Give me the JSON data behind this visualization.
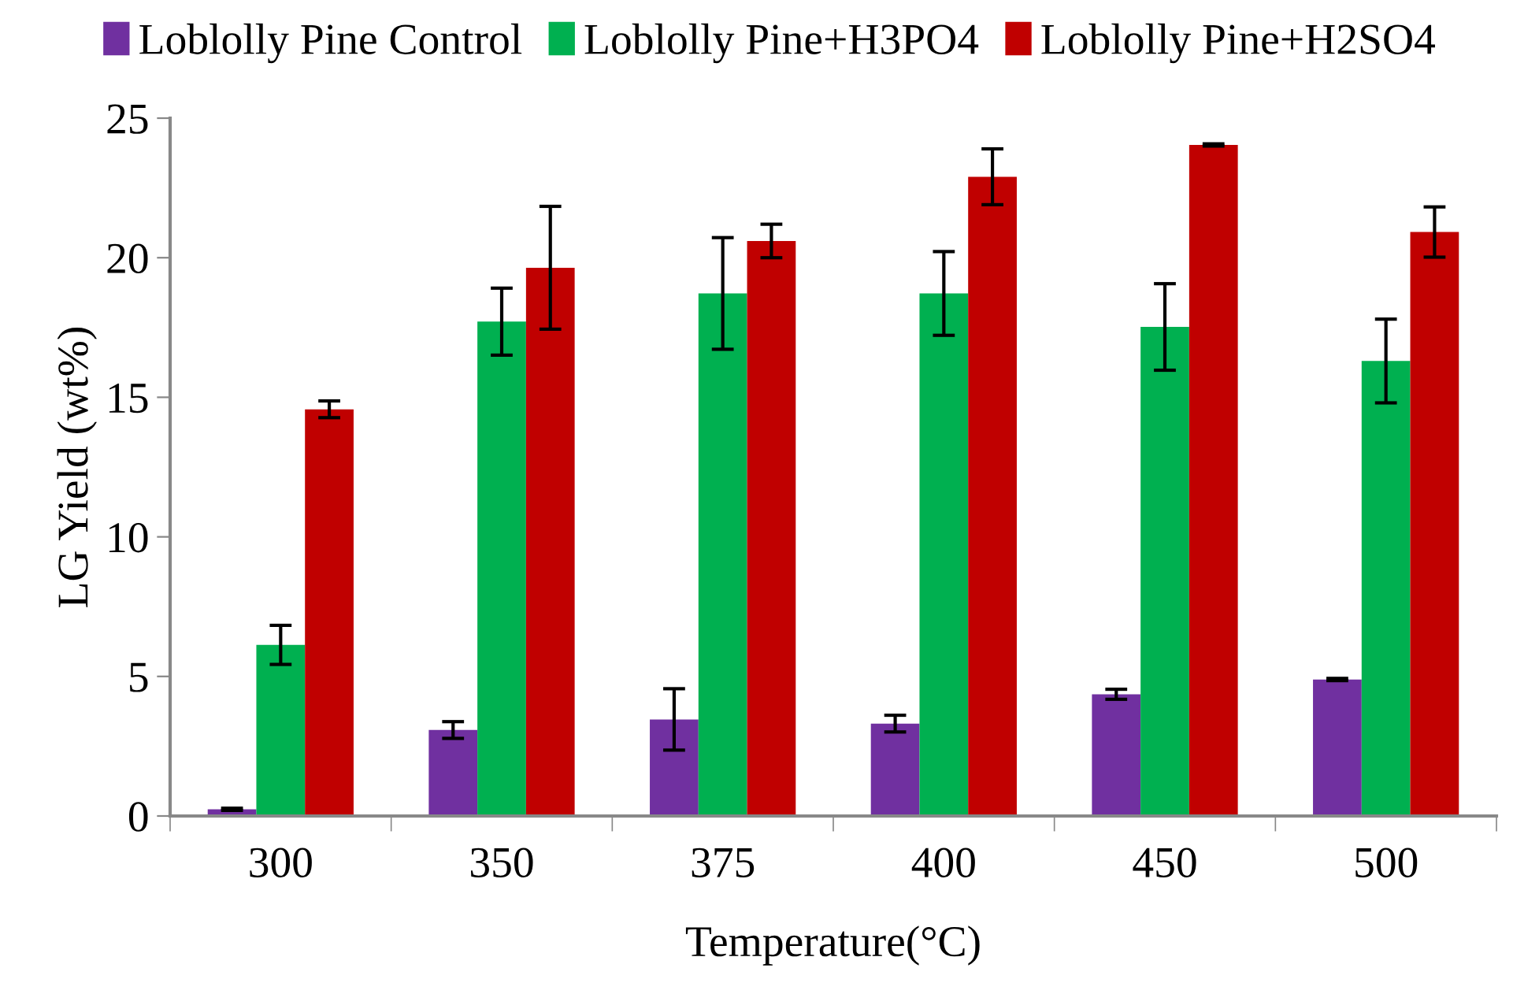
{
  "chart_data": {
    "type": "bar",
    "xlabel": "Temperature(°C)",
    "ylabel": "LG Yield (wt%)",
    "categories": [
      "300",
      "350",
      "375",
      "400",
      "450",
      "500"
    ],
    "series": [
      {
        "name": "Loblolly Pine Control",
        "color": "#7030a0",
        "values": [
          0.24,
          3.08,
          3.46,
          3.31,
          4.36,
          4.89
        ],
        "errors": [
          0.04,
          0.3,
          1.1,
          0.3,
          0.18,
          0.04
        ]
      },
      {
        "name": "Loblolly Pine+H3PO4",
        "color": "#00b050",
        "values": [
          6.13,
          17.71,
          18.72,
          18.72,
          17.52,
          16.3
        ],
        "errors": [
          0.7,
          1.2,
          2.0,
          1.5,
          1.55,
          1.5
        ]
      },
      {
        "name": "Loblolly Pine+H2SO4",
        "color": "#c00000",
        "values": [
          14.57,
          19.64,
          20.6,
          22.9,
          24.04,
          20.92
        ],
        "errors": [
          0.3,
          2.2,
          0.6,
          1.0,
          0.04,
          0.9
        ]
      }
    ],
    "ylim": [
      0,
      25
    ],
    "yticks": [
      0,
      5,
      10,
      15,
      20,
      25
    ],
    "grid": false,
    "legend": "top"
  }
}
